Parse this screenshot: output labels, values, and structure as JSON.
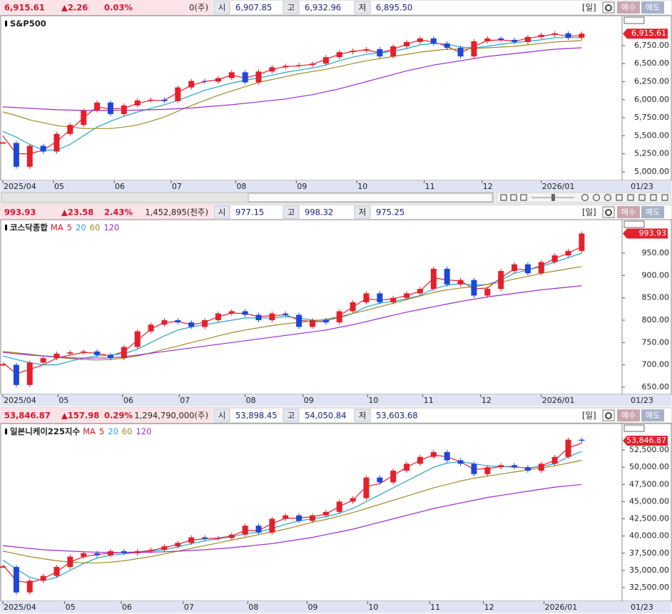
{
  "chart_data": [
    {
      "type": "candlestick",
      "title": "S&P500",
      "header": {
        "price": "6,915.61",
        "change": "▲2.26",
        "pct": "0.03%",
        "volume": "0(주)",
        "open_label": "시",
        "open": "6,907.85",
        "high_label": "고",
        "high": "6,932.96",
        "low_label": "저",
        "low": "6,895.50",
        "period": "[일]",
        "buy": "매수",
        "sell": "매도"
      },
      "end_label": "01/23",
      "xlim": [
        0,
        46
      ],
      "xticks": [
        {
          "value": 0,
          "label": "2025/04"
        },
        {
          "value": 3.76,
          "label": "05"
        },
        {
          "value": 8.27,
          "label": "06"
        },
        {
          "value": 12.5,
          "label": "07"
        },
        {
          "value": 17.3,
          "label": "08"
        },
        {
          "value": 21.8,
          "label": "09"
        },
        {
          "value": 26.3,
          "label": "10"
        },
        {
          "value": 31.3,
          "label": "11"
        },
        {
          "value": 35.6,
          "label": "12"
        },
        {
          "value": 40,
          "label": "2026/01"
        }
      ],
      "ylim": [
        4880,
        7165
      ],
      "yticks": [
        {
          "value": 5000,
          "label": "5,000.00"
        },
        {
          "value": 5250,
          "label": "5,250.00"
        },
        {
          "value": 5500,
          "label": "5,500.00"
        },
        {
          "value": 5750,
          "label": "5,750.00"
        },
        {
          "value": 6000,
          "label": "6,000.00"
        },
        {
          "value": 6250,
          "label": "6,250.00"
        },
        {
          "value": 6500,
          "label": "6,500.00"
        },
        {
          "value": 6750,
          "label": "6,750.00"
        }
      ],
      "up_color": "#e3202c",
      "down_color": "#1c48d8",
      "values": [
        5400,
        5070,
        5360,
        5280,
        5525,
        5650,
        5850,
        5960,
        5800,
        5920,
        5990,
        6000,
        5980,
        6170,
        6260,
        6250,
        6300,
        6380,
        6240,
        6390,
        6450,
        6470,
        6480,
        6500,
        6590,
        6660,
        6680,
        6700,
        6600,
        6740,
        6800,
        6850,
        6780,
        6720,
        6600,
        6810,
        6850,
        6830,
        6800,
        6870,
        6900,
        6920,
        6860,
        6915.61
      ],
      "series": [
        {
          "color": "#e3202c",
          "values": [
            5500,
            5250,
            5250,
            5300,
            5420,
            5580,
            5750,
            5900,
            5870,
            5880,
            5950,
            5990,
            5990,
            6100,
            6200,
            6250,
            6280,
            6340,
            6300,
            6350,
            6420,
            6460,
            6470,
            6490,
            6560,
            6630,
            6670,
            6690,
            6650,
            6700,
            6770,
            6830,
            6800,
            6740,
            6650,
            6740,
            6820,
            6830,
            6810,
            6850,
            6880,
            6910,
            6880,
            6890
          ]
        },
        {
          "color": "#27a3cc",
          "values": [
            5560,
            5480,
            5380,
            5300,
            5300,
            5380,
            5500,
            5620,
            5700,
            5770,
            5830,
            5880,
            5930,
            5990,
            6060,
            6130,
            6180,
            6230,
            6270,
            6300,
            6340,
            6380,
            6410,
            6440,
            6480,
            6540,
            6590,
            6630,
            6650,
            6670,
            6710,
            6760,
            6780,
            6770,
            6730,
            6720,
            6740,
            6770,
            6790,
            6810,
            6830,
            6860,
            6860,
            6860
          ]
        },
        {
          "color": "#a08a28",
          "values": [
            5830,
            5780,
            5720,
            5680,
            5640,
            5620,
            5600,
            5600,
            5600,
            5620,
            5650,
            5700,
            5760,
            5840,
            5920,
            5990,
            6060,
            6120,
            6180,
            6240,
            6280,
            6320,
            6360,
            6390,
            6420,
            6460,
            6500,
            6540,
            6570,
            6600,
            6630,
            6660,
            6680,
            6700,
            6700,
            6710,
            6720,
            6730,
            6740,
            6760,
            6780,
            6800,
            6810,
            6820
          ]
        },
        {
          "color": "#9b2bd2",
          "values": [
            5900,
            5890,
            5880,
            5870,
            5860,
            5855,
            5850,
            5850,
            5850,
            5852,
            5855,
            5860,
            5865,
            5875,
            5885,
            5900,
            5915,
            5930,
            5950,
            5970,
            5990,
            6010,
            6040,
            6070,
            6110,
            6150,
            6200,
            6250,
            6300,
            6350,
            6400,
            6440,
            6480,
            6510,
            6540,
            6570,
            6600,
            6620,
            6640,
            6660,
            6680,
            6700,
            6710,
            6720
          ]
        }
      ]
    },
    {
      "type": "candlestick",
      "title": "코스닥종합",
      "legend_prefix": "MA",
      "header": {
        "price": "993.93",
        "change": "▲23.58",
        "pct": "2.43%",
        "volume": "1,452,895(천주)",
        "open_label": "시",
        "open": "977.15",
        "high_label": "고",
        "high": "998.32",
        "low_label": "저",
        "low": "975.25",
        "period": "[일]",
        "buy": "매수",
        "sell": "매도"
      },
      "end_label": "01/23",
      "xlim": [
        0,
        46
      ],
      "xticks": [
        {
          "value": 0,
          "label": "2025/04"
        },
        {
          "value": 4.1,
          "label": "05"
        },
        {
          "value": 8.9,
          "label": "06"
        },
        {
          "value": 13.1,
          "label": "07"
        },
        {
          "value": 18,
          "label": "08"
        },
        {
          "value": 22.3,
          "label": "09"
        },
        {
          "value": 27.1,
          "label": "10"
        },
        {
          "value": 31.2,
          "label": "11"
        },
        {
          "value": 35.5,
          "label": "12"
        },
        {
          "value": 40,
          "label": "2026/01"
        }
      ],
      "ylim": [
        634,
        1025
      ],
      "yticks": [
        {
          "value": 650,
          "label": "650.00"
        },
        {
          "value": 700,
          "label": "700.00"
        },
        {
          "value": 750,
          "label": "750.00"
        },
        {
          "value": 800,
          "label": "800.00"
        },
        {
          "value": 850,
          "label": "850.00"
        },
        {
          "value": 900,
          "label": "900.00"
        },
        {
          "value": 950,
          "label": "950.00"
        }
      ],
      "up_color": "#e3202c",
      "down_color": "#1c48d8",
      "values": [
        700,
        655,
        705,
        715,
        725,
        728,
        730,
        722,
        715,
        740,
        775,
        790,
        800,
        795,
        785,
        800,
        815,
        820,
        812,
        800,
        815,
        812,
        785,
        800,
        795,
        820,
        840,
        860,
        840,
        850,
        860,
        870,
        915,
        880,
        890,
        855,
        870,
        910,
        925,
        905,
        930,
        945,
        955,
        993.93
      ],
      "series": [
        {
          "name": "5",
          "color": "#e3202c",
          "values": [
            705,
            680,
            690,
            700,
            715,
            722,
            728,
            726,
            720,
            730,
            755,
            780,
            795,
            797,
            790,
            795,
            808,
            816,
            815,
            808,
            810,
            812,
            800,
            797,
            797,
            810,
            830,
            848,
            845,
            848,
            855,
            865,
            895,
            890,
            888,
            870,
            872,
            895,
            915,
            912,
            922,
            938,
            950,
            965
          ]
        },
        {
          "name": "20",
          "color": "#27a3cc",
          "values": [
            720,
            712,
            705,
            700,
            700,
            708,
            715,
            720,
            722,
            725,
            735,
            750,
            765,
            778,
            785,
            790,
            795,
            800,
            805,
            805,
            805,
            808,
            805,
            800,
            800,
            805,
            815,
            830,
            838,
            842,
            848,
            855,
            870,
            878,
            882,
            878,
            880,
            890,
            905,
            912,
            920,
            930,
            940,
            950
          ]
        },
        {
          "name": "60",
          "color": "#a08a28",
          "values": [
            730,
            727,
            724,
            720,
            717,
            714,
            712,
            711,
            712,
            715,
            720,
            727,
            735,
            742,
            750,
            757,
            765,
            772,
            778,
            783,
            788,
            792,
            795,
            798,
            802,
            808,
            815,
            822,
            830,
            838,
            846,
            854,
            862,
            868,
            872,
            875,
            880,
            885,
            892,
            898,
            905,
            910,
            915,
            920
          ]
        },
        {
          "name": "120",
          "color": "#9b2bd2",
          "values": [
            728,
            725,
            722,
            720,
            718,
            716,
            715,
            715,
            716,
            718,
            722,
            726,
            730,
            734,
            738,
            742,
            746,
            750,
            754,
            758,
            762,
            766,
            770,
            774,
            778,
            784,
            790,
            797,
            804,
            811,
            818,
            824,
            830,
            836,
            842,
            847,
            852,
            856,
            860,
            864,
            868,
            871,
            874,
            877
          ]
        }
      ]
    },
    {
      "type": "candlestick",
      "title": "일본니케이225지수",
      "legend_prefix": "MA",
      "header": {
        "price": "53,846.87",
        "change": "▲157.98",
        "pct": "0.29%",
        "volume": "1,294,790,000(주)",
        "open_label": "시",
        "open": "53,898.45",
        "high_label": "고",
        "high": "54,050.84",
        "low_label": "저",
        "low": "53,603.68",
        "period": "[일]",
        "buy": "매수",
        "sell": "매도"
      },
      "end_label": "01/23",
      "xlim": [
        0,
        46
      ],
      "xticks": [
        {
          "value": 0,
          "label": "2025/04"
        },
        {
          "value": 4.6,
          "label": "05"
        },
        {
          "value": 8.8,
          "label": "06"
        },
        {
          "value": 13.4,
          "label": "07"
        },
        {
          "value": 18.2,
          "label": "08"
        },
        {
          "value": 22.6,
          "label": "09"
        },
        {
          "value": 27.1,
          "label": "10"
        },
        {
          "value": 31.7,
          "label": "11"
        },
        {
          "value": 35.7,
          "label": "12"
        },
        {
          "value": 40.2,
          "label": "2026/01"
        }
      ],
      "ylim": [
        30530,
        56340
      ],
      "yticks": [
        {
          "value": 32500,
          "label": "32,500.00"
        },
        {
          "value": 35000,
          "label": "35,000.00"
        },
        {
          "value": 37500,
          "label": "37,500.00"
        },
        {
          "value": 40000,
          "label": "40,000.00"
        },
        {
          "value": 42500,
          "label": "42,500.00"
        },
        {
          "value": 45000,
          "label": "45,000.00"
        },
        {
          "value": 47500,
          "label": "47,500.00"
        },
        {
          "value": 50000,
          "label": "50,000.00"
        },
        {
          "value": 52500,
          "label": "52,500.00"
        }
      ],
      "up_color": "#e3202c",
      "down_color": "#1c48d8",
      "values": [
        35500,
        31800,
        33500,
        34200,
        35500,
        37000,
        37500,
        37200,
        37800,
        37500,
        37800,
        38000,
        38500,
        39000,
        39800,
        39600,
        39700,
        40200,
        41500,
        40500,
        42500,
        43000,
        42200,
        43000,
        43500,
        45000,
        45500,
        48500,
        47800,
        49500,
        50500,
        51500,
        52200,
        51000,
        50500,
        49000,
        50000,
        50300,
        50000,
        49500,
        50500,
        51500,
        54000,
        53846.87
      ],
      "series": [
        {
          "name": "5",
          "color": "#e3202c",
          "values": [
            35800,
            33500,
            33200,
            33800,
            34800,
            36200,
            37000,
            37300,
            37500,
            37600,
            37700,
            37900,
            38300,
            38800,
            39400,
            39600,
            39700,
            40000,
            40800,
            40800,
            41800,
            42600,
            42600,
            42800,
            43200,
            44300,
            45200,
            47200,
            47600,
            48800,
            50000,
            51000,
            51800,
            51500,
            50800,
            49700,
            49800,
            50100,
            50100,
            49800,
            50200,
            51000,
            52800,
            53500
          ]
        },
        {
          "name": "20",
          "color": "#27a3cc",
          "values": [
            36500,
            35200,
            34000,
            33500,
            34000,
            35000,
            36000,
            36800,
            37200,
            37400,
            37600,
            37800,
            38000,
            38400,
            38900,
            39300,
            39600,
            39900,
            40300,
            40600,
            41100,
            41700,
            42200,
            42500,
            42800,
            43300,
            44000,
            45000,
            46000,
            47000,
            48000,
            49000,
            50000,
            50600,
            50800,
            50500,
            50200,
            50100,
            50000,
            49900,
            50100,
            50500,
            51500,
            52300
          ]
        },
        {
          "name": "60",
          "color": "#a08a28",
          "values": [
            37800,
            37400,
            37000,
            36700,
            36400,
            36200,
            36100,
            36100,
            36200,
            36400,
            36700,
            37000,
            37400,
            37800,
            38200,
            38600,
            39000,
            39400,
            39800,
            40200,
            40600,
            41000,
            41500,
            42000,
            42400,
            42900,
            43400,
            44000,
            44600,
            45200,
            45800,
            46400,
            47000,
            47500,
            48000,
            48400,
            48700,
            49000,
            49300,
            49600,
            49900,
            50200,
            50600,
            51000
          ]
        },
        {
          "name": "120",
          "color": "#9b2bd2",
          "values": [
            38600,
            38400,
            38200,
            38000,
            37900,
            37800,
            37700,
            37650,
            37600,
            37600,
            37600,
            37650,
            37700,
            37800,
            37900,
            38000,
            38150,
            38300,
            38500,
            38700,
            38900,
            39200,
            39500,
            39800,
            40200,
            40600,
            41000,
            41500,
            42000,
            42500,
            43000,
            43500,
            44000,
            44400,
            44800,
            45200,
            45600,
            45900,
            46200,
            46500,
            46800,
            47100,
            47300,
            47500
          ]
        }
      ]
    }
  ]
}
